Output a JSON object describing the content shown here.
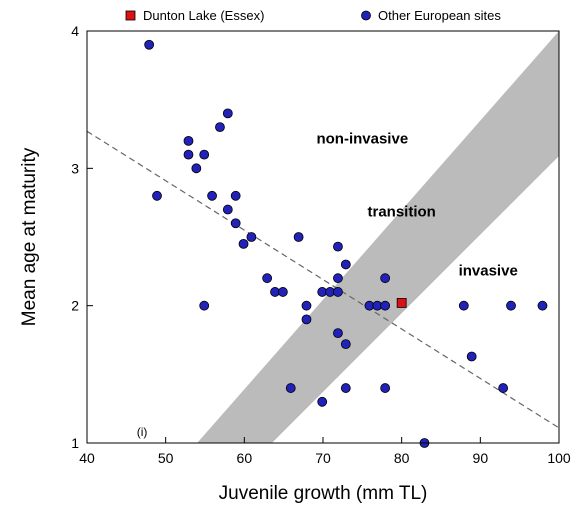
{
  "chart_data": {
    "type": "scatter",
    "xlabel": "Juvenile growth (mm TL)",
    "ylabel": "Mean age at maturity",
    "xlim": [
      40,
      100
    ],
    "ylim": [
      1,
      4
    ],
    "xticks": [
      40,
      50,
      60,
      70,
      80,
      90,
      100
    ],
    "yticks": [
      1,
      2,
      3,
      4
    ],
    "legend": {
      "position": "top",
      "entries": [
        {
          "label": "Dunton Lake (Essex)",
          "marker": "square",
          "color": "#dd1111"
        },
        {
          "label": "Other European sites",
          "marker": "circle",
          "color": "#2222bb"
        }
      ]
    },
    "series": [
      {
        "name": "Other European sites",
        "marker": "circle",
        "color": "#2222bb",
        "points": [
          [
            47.9,
            3.9
          ],
          [
            48.9,
            2.8
          ],
          [
            52.9,
            3.2
          ],
          [
            52.9,
            3.1
          ],
          [
            53.9,
            3.0
          ],
          [
            54.9,
            3.1
          ],
          [
            54.9,
            2.0
          ],
          [
            55.9,
            2.8
          ],
          [
            56.9,
            3.3
          ],
          [
            57.9,
            3.4
          ],
          [
            57.9,
            2.7
          ],
          [
            58.9,
            2.8
          ],
          [
            58.9,
            2.6
          ],
          [
            59.9,
            2.45
          ],
          [
            60.9,
            2.5
          ],
          [
            62.9,
            2.2
          ],
          [
            63.9,
            2.1
          ],
          [
            64.9,
            2.1
          ],
          [
            65.9,
            1.4
          ],
          [
            66.9,
            2.5
          ],
          [
            67.9,
            2.0
          ],
          [
            67.9,
            1.9
          ],
          [
            69.9,
            2.1
          ],
          [
            69.9,
            1.3
          ],
          [
            70.9,
            2.1
          ],
          [
            71.9,
            2.43
          ],
          [
            71.9,
            2.2
          ],
          [
            71.9,
            2.1
          ],
          [
            71.9,
            1.8
          ],
          [
            72.9,
            2.3
          ],
          [
            72.9,
            1.72
          ],
          [
            72.9,
            1.4
          ],
          [
            75.9,
            2.0
          ],
          [
            76.9,
            2.0
          ],
          [
            77.9,
            2.2
          ],
          [
            77.9,
            2.0
          ],
          [
            77.9,
            1.4
          ],
          [
            82.9,
            1.0
          ],
          [
            87.9,
            2.0
          ],
          [
            88.9,
            1.63
          ],
          [
            92.9,
            1.4
          ],
          [
            93.9,
            2.0
          ],
          [
            97.9,
            2.0
          ]
        ]
      },
      {
        "name": "Dunton Lake (Essex)",
        "marker": "square",
        "color": "#dd1111",
        "points": [
          [
            80.0,
            2.02
          ]
        ]
      }
    ],
    "reference_line": {
      "style": "dashed",
      "color": "#666666",
      "from": [
        40,
        3.27
      ],
      "to": [
        100,
        1.11
      ]
    },
    "transition_band": {
      "color": "#bbbbbb",
      "upper_edge": {
        "from": [
          54,
          1.0
        ],
        "to": [
          100,
          4.0
        ]
      },
      "lower_edge": {
        "from": [
          63.5,
          1.0
        ],
        "to": [
          100,
          3.09
        ]
      }
    },
    "annotations": [
      {
        "text": "non-invasive",
        "x": 75,
        "y": 3.18,
        "bold": true
      },
      {
        "text": "transition",
        "x": 80,
        "y": 2.65,
        "bold": true
      },
      {
        "text": "invasive",
        "x": 91,
        "y": 2.22,
        "bold": true
      },
      {
        "text": "(i)",
        "x": 47,
        "y": 1.05,
        "bold": false
      }
    ]
  }
}
